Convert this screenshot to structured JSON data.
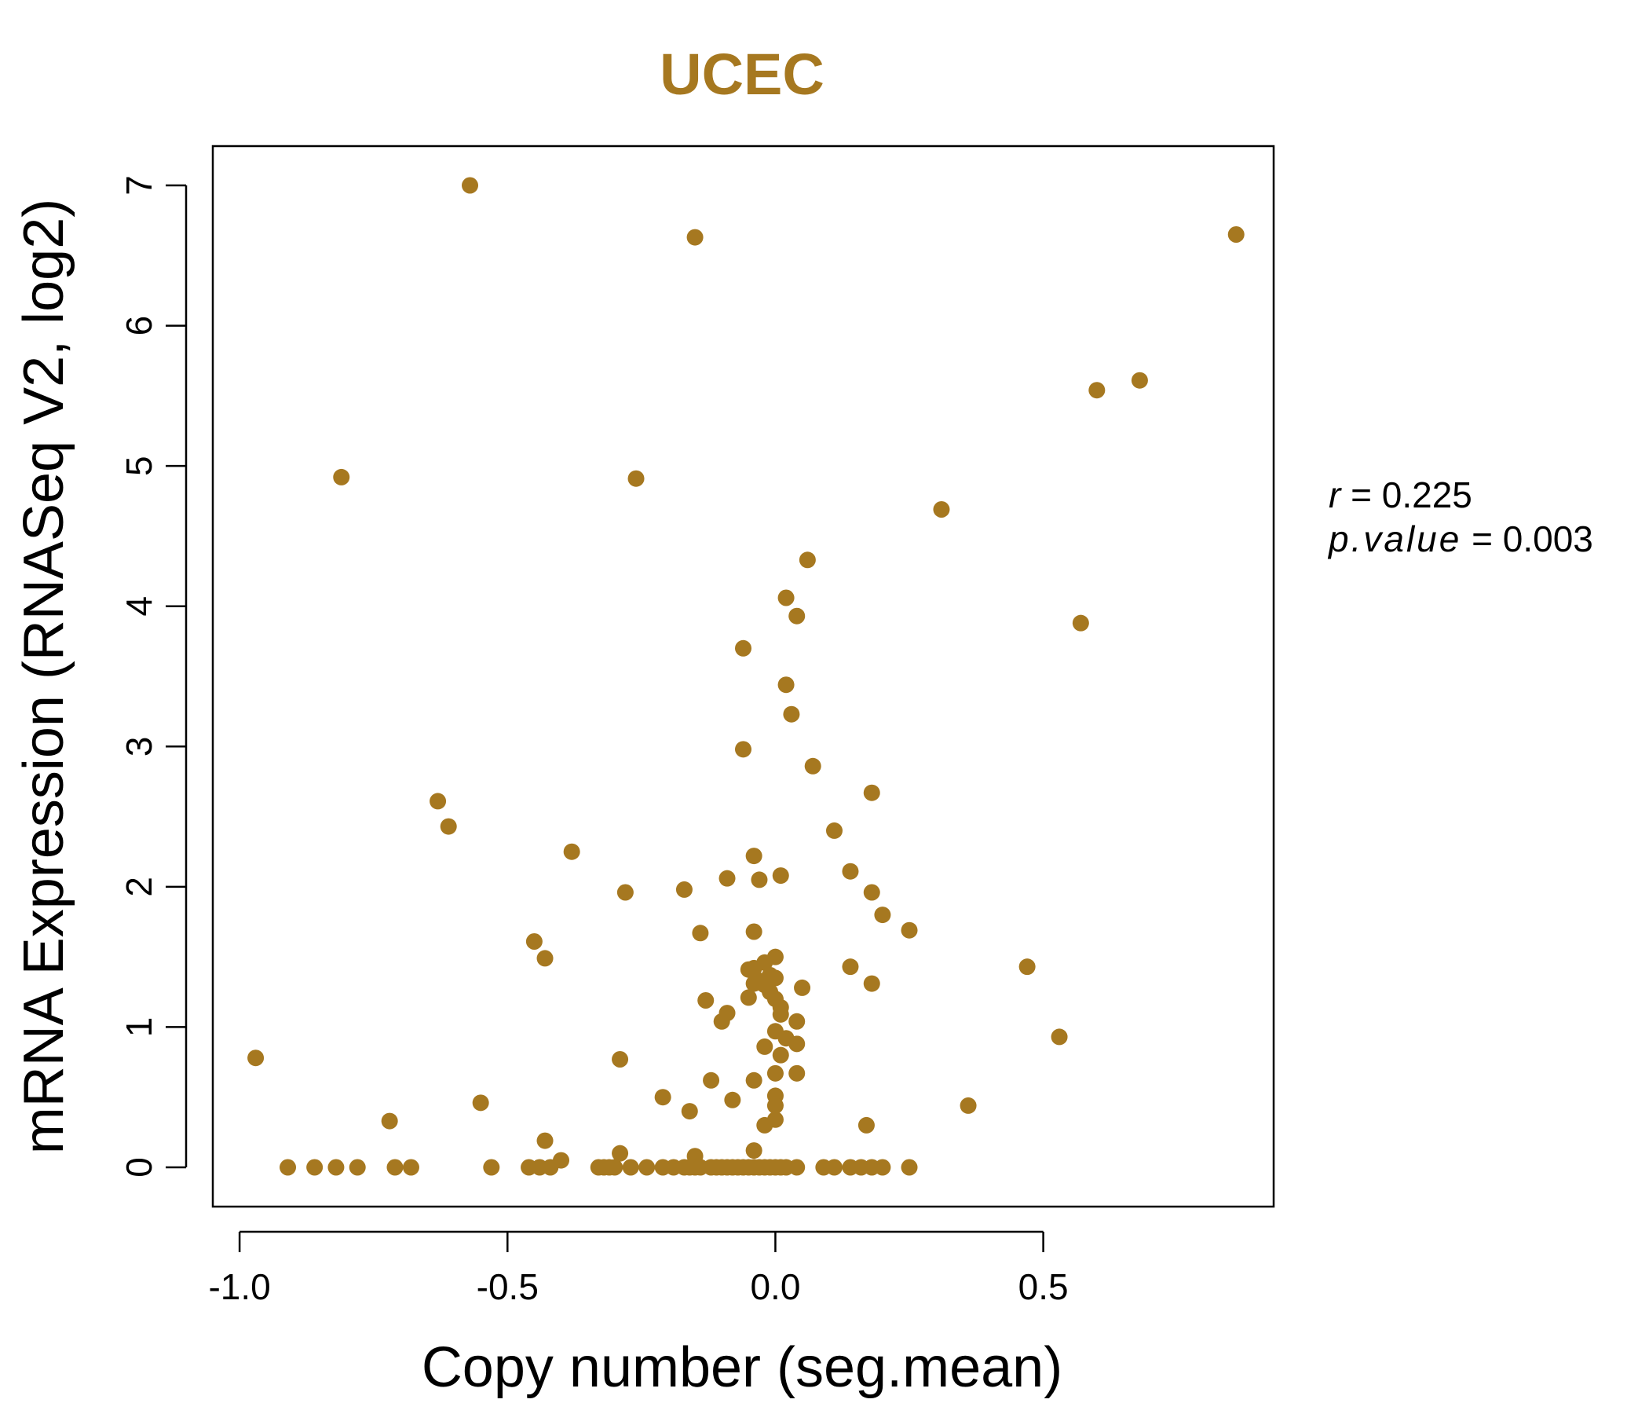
{
  "chart_data": {
    "type": "scatter",
    "title": "UCEC",
    "xlabel": "Copy number (seg.mean)",
    "ylabel": "mRNA Expression (RNASeq V2, log2)",
    "xlim": [
      -1.05,
      0.93
    ],
    "ylim": [
      -0.28,
      7.28
    ],
    "xticks": [
      -1.0,
      -0.5,
      0.0,
      0.5
    ],
    "xtick_labels": [
      "-1.0",
      "-0.5",
      "0.0",
      "0.5"
    ],
    "yticks": [
      0,
      1,
      2,
      3,
      4,
      5,
      6,
      7
    ],
    "ytick_labels": [
      "0",
      "1",
      "2",
      "3",
      "4",
      "5",
      "6",
      "7"
    ],
    "grid": false,
    "point_color": "#A67820",
    "annotations": {
      "r_label": "r",
      "r_value": "0.225",
      "p_label": "p.value",
      "p_value": "0.003"
    },
    "points": [
      {
        "x": -0.57,
        "y": 7.0
      },
      {
        "x": -0.15,
        "y": 6.63
      },
      {
        "x": 0.86,
        "y": 6.65
      },
      {
        "x": 0.6,
        "y": 5.54
      },
      {
        "x": 0.68,
        "y": 5.61
      },
      {
        "x": -0.81,
        "y": 4.92
      },
      {
        "x": -0.26,
        "y": 4.91
      },
      {
        "x": 0.31,
        "y": 4.69
      },
      {
        "x": 0.06,
        "y": 4.33
      },
      {
        "x": 0.02,
        "y": 4.06
      },
      {
        "x": 0.04,
        "y": 3.93
      },
      {
        "x": 0.57,
        "y": 3.88
      },
      {
        "x": -0.06,
        "y": 3.7
      },
      {
        "x": 0.02,
        "y": 3.44
      },
      {
        "x": 0.03,
        "y": 3.23
      },
      {
        "x": -0.06,
        "y": 2.98
      },
      {
        "x": 0.07,
        "y": 2.86
      },
      {
        "x": 0.18,
        "y": 2.67
      },
      {
        "x": -0.63,
        "y": 2.61
      },
      {
        "x": -0.61,
        "y": 2.43
      },
      {
        "x": 0.11,
        "y": 2.4
      },
      {
        "x": -0.38,
        "y": 2.25
      },
      {
        "x": -0.04,
        "y": 2.22
      },
      {
        "x": 0.14,
        "y": 2.11
      },
      {
        "x": 0.01,
        "y": 2.08
      },
      {
        "x": -0.09,
        "y": 2.06
      },
      {
        "x": -0.03,
        "y": 2.05
      },
      {
        "x": -0.17,
        "y": 1.98
      },
      {
        "x": -0.28,
        "y": 1.96
      },
      {
        "x": 0.18,
        "y": 1.96
      },
      {
        "x": 0.2,
        "y": 1.8
      },
      {
        "x": -0.04,
        "y": 1.68
      },
      {
        "x": 0.25,
        "y": 1.69
      },
      {
        "x": -0.14,
        "y": 1.67
      },
      {
        "x": -0.45,
        "y": 1.61
      },
      {
        "x": -0.43,
        "y": 1.49
      },
      {
        "x": 0.0,
        "y": 1.5
      },
      {
        "x": -0.02,
        "y": 1.46
      },
      {
        "x": -0.04,
        "y": 1.42
      },
      {
        "x": 0.14,
        "y": 1.43
      },
      {
        "x": 0.47,
        "y": 1.43
      },
      {
        "x": -0.05,
        "y": 1.41
      },
      {
        "x": -0.01,
        "y": 1.37
      },
      {
        "x": -0.03,
        "y": 1.33
      },
      {
        "x": 0.0,
        "y": 1.35
      },
      {
        "x": -0.04,
        "y": 1.31
      },
      {
        "x": 0.18,
        "y": 1.31
      },
      {
        "x": -0.02,
        "y": 1.3
      },
      {
        "x": 0.05,
        "y": 1.28
      },
      {
        "x": -0.01,
        "y": 1.25
      },
      {
        "x": -0.05,
        "y": 1.21
      },
      {
        "x": -0.13,
        "y": 1.19
      },
      {
        "x": 0.0,
        "y": 1.2
      },
      {
        "x": 0.01,
        "y": 1.14
      },
      {
        "x": -0.09,
        "y": 1.1
      },
      {
        "x": 0.01,
        "y": 1.09
      },
      {
        "x": -0.1,
        "y": 1.04
      },
      {
        "x": 0.04,
        "y": 1.04
      },
      {
        "x": 0.0,
        "y": 0.97
      },
      {
        "x": 0.53,
        "y": 0.93
      },
      {
        "x": 0.02,
        "y": 0.92
      },
      {
        "x": -0.02,
        "y": 0.86
      },
      {
        "x": 0.04,
        "y": 0.88
      },
      {
        "x": -0.97,
        "y": 0.78
      },
      {
        "x": -0.29,
        "y": 0.77
      },
      {
        "x": 0.01,
        "y": 0.8
      },
      {
        "x": 0.04,
        "y": 0.67
      },
      {
        "x": 0.0,
        "y": 0.67
      },
      {
        "x": -0.12,
        "y": 0.62
      },
      {
        "x": -0.04,
        "y": 0.62
      },
      {
        "x": 0.0,
        "y": 0.51
      },
      {
        "x": -0.21,
        "y": 0.5
      },
      {
        "x": -0.08,
        "y": 0.48
      },
      {
        "x": -0.55,
        "y": 0.46
      },
      {
        "x": 0.0,
        "y": 0.44
      },
      {
        "x": 0.36,
        "y": 0.44
      },
      {
        "x": -0.16,
        "y": 0.4
      },
      {
        "x": 0.0,
        "y": 0.34
      },
      {
        "x": -0.72,
        "y": 0.33
      },
      {
        "x": -0.02,
        "y": 0.3
      },
      {
        "x": 0.17,
        "y": 0.3
      },
      {
        "x": -0.43,
        "y": 0.19
      },
      {
        "x": -0.29,
        "y": 0.1
      },
      {
        "x": -0.04,
        "y": 0.12
      },
      {
        "x": -0.15,
        "y": 0.08
      },
      {
        "x": -0.4,
        "y": 0.05
      },
      {
        "x": -0.91,
        "y": 0.0
      },
      {
        "x": -0.86,
        "y": 0.0
      },
      {
        "x": -0.82,
        "y": 0.0
      },
      {
        "x": -0.78,
        "y": 0.0
      },
      {
        "x": -0.71,
        "y": 0.0
      },
      {
        "x": -0.68,
        "y": 0.0
      },
      {
        "x": -0.53,
        "y": 0.0
      },
      {
        "x": -0.46,
        "y": 0.0
      },
      {
        "x": -0.44,
        "y": 0.0
      },
      {
        "x": -0.42,
        "y": 0.0
      },
      {
        "x": -0.33,
        "y": 0.0
      },
      {
        "x": -0.32,
        "y": 0.0
      },
      {
        "x": -0.31,
        "y": 0.0
      },
      {
        "x": -0.3,
        "y": 0.0
      },
      {
        "x": -0.27,
        "y": 0.0
      },
      {
        "x": -0.24,
        "y": 0.0
      },
      {
        "x": -0.21,
        "y": 0.0
      },
      {
        "x": -0.19,
        "y": 0.0
      },
      {
        "x": -0.17,
        "y": 0.0
      },
      {
        "x": -0.16,
        "y": 0.0
      },
      {
        "x": -0.15,
        "y": 0.0
      },
      {
        "x": -0.14,
        "y": 0.0
      },
      {
        "x": -0.12,
        "y": 0.0
      },
      {
        "x": -0.11,
        "y": 0.0
      },
      {
        "x": -0.1,
        "y": 0.0
      },
      {
        "x": -0.09,
        "y": 0.0
      },
      {
        "x": -0.08,
        "y": 0.0
      },
      {
        "x": -0.07,
        "y": 0.0
      },
      {
        "x": -0.06,
        "y": 0.0
      },
      {
        "x": -0.05,
        "y": 0.0
      },
      {
        "x": -0.04,
        "y": 0.0
      },
      {
        "x": -0.03,
        "y": 0.0
      },
      {
        "x": -0.02,
        "y": 0.0
      },
      {
        "x": -0.01,
        "y": 0.0
      },
      {
        "x": 0.0,
        "y": 0.0
      },
      {
        "x": 0.01,
        "y": 0.0
      },
      {
        "x": 0.02,
        "y": 0.0
      },
      {
        "x": 0.04,
        "y": 0.0
      },
      {
        "x": 0.09,
        "y": 0.0
      },
      {
        "x": 0.11,
        "y": 0.0
      },
      {
        "x": 0.14,
        "y": 0.0
      },
      {
        "x": 0.16,
        "y": 0.0
      },
      {
        "x": 0.18,
        "y": 0.0
      },
      {
        "x": 0.2,
        "y": 0.0
      },
      {
        "x": 0.25,
        "y": 0.0
      }
    ]
  }
}
